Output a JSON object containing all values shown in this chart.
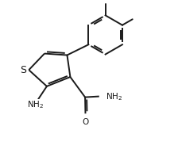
{
  "bg_color": "#ffffff",
  "line_color": "#1a1a1a",
  "line_width": 1.4,
  "dbo": 0.012,
  "font_size": 7.5,
  "fig_width": 2.24,
  "fig_height": 1.98,
  "dpi": 100,
  "xlim": [
    0.0,
    1.0
  ],
  "ylim": [
    0.0,
    1.0
  ]
}
